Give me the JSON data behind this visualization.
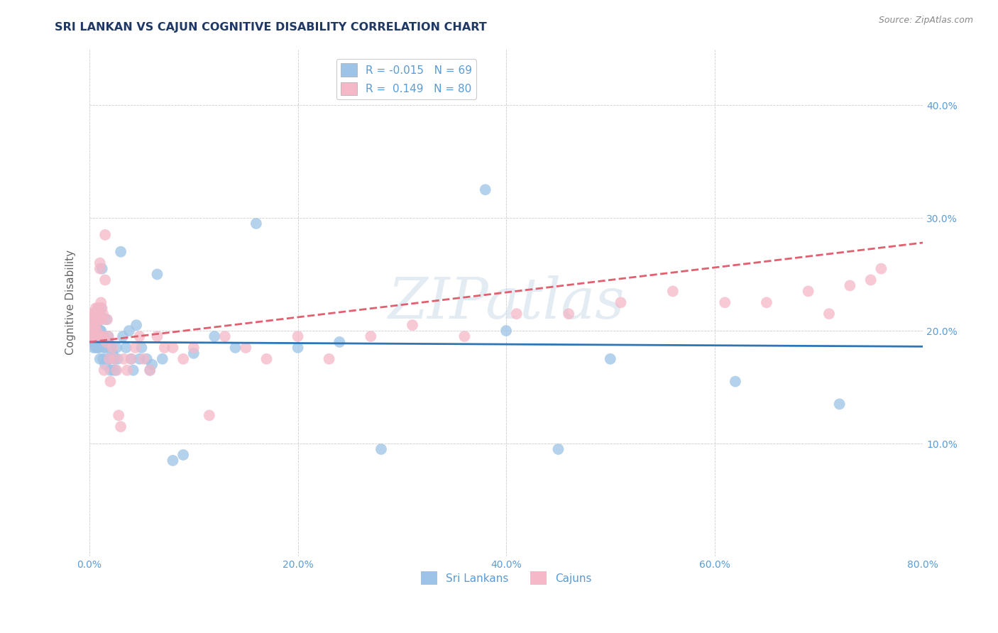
{
  "title": "SRI LANKAN VS CAJUN COGNITIVE DISABILITY CORRELATION CHART",
  "source": "Source: ZipAtlas.com",
  "ylabel": "Cognitive Disability",
  "watermark": "ZIPatlas",
  "xlim": [
    0.0,
    0.8
  ],
  "ylim": [
    0.0,
    0.45
  ],
  "xticks": [
    0.0,
    0.2,
    0.4,
    0.6,
    0.8
  ],
  "xtick_labels": [
    "0.0%",
    "20.0%",
    "40.0%",
    "60.0%",
    "80.0%"
  ],
  "yticks": [
    0.1,
    0.2,
    0.3,
    0.4
  ],
  "ytick_labels": [
    "10.0%",
    "20.0%",
    "30.0%",
    "40.0%"
  ],
  "sri_lankan_R": -0.015,
  "sri_lankan_N": 69,
  "cajun_R": 0.149,
  "cajun_N": 80,
  "title_color": "#1f3864",
  "axis_color": "#5b9bd5",
  "sri_lankan_color": "#9dc3e6",
  "cajun_color": "#f4b8c8",
  "sri_lankan_line_color": "#2e75b6",
  "cajun_line_color": "#e06070",
  "background_color": "#ffffff",
  "sri_lankans_x": [
    0.002,
    0.003,
    0.004,
    0.005,
    0.005,
    0.006,
    0.006,
    0.007,
    0.007,
    0.008,
    0.008,
    0.009,
    0.009,
    0.01,
    0.01,
    0.01,
    0.011,
    0.011,
    0.012,
    0.012,
    0.013,
    0.013,
    0.014,
    0.015,
    0.015,
    0.016,
    0.016,
    0.017,
    0.018,
    0.018,
    0.019,
    0.02,
    0.02,
    0.021,
    0.022,
    0.023,
    0.024,
    0.025,
    0.026,
    0.027,
    0.03,
    0.032,
    0.035,
    0.038,
    0.04,
    0.042,
    0.045,
    0.048,
    0.05,
    0.055,
    0.058,
    0.06,
    0.065,
    0.07,
    0.08,
    0.09,
    0.1,
    0.12,
    0.14,
    0.16,
    0.2,
    0.24,
    0.28,
    0.38,
    0.4,
    0.45,
    0.5,
    0.62,
    0.72
  ],
  "sri_lankans_y": [
    0.195,
    0.19,
    0.185,
    0.21,
    0.19,
    0.2,
    0.185,
    0.205,
    0.195,
    0.22,
    0.185,
    0.21,
    0.185,
    0.2,
    0.215,
    0.175,
    0.2,
    0.22,
    0.255,
    0.19,
    0.195,
    0.175,
    0.185,
    0.17,
    0.185,
    0.19,
    0.21,
    0.175,
    0.19,
    0.195,
    0.175,
    0.165,
    0.175,
    0.185,
    0.18,
    0.165,
    0.175,
    0.165,
    0.185,
    0.175,
    0.27,
    0.195,
    0.185,
    0.2,
    0.175,
    0.165,
    0.205,
    0.175,
    0.185,
    0.175,
    0.165,
    0.17,
    0.25,
    0.175,
    0.085,
    0.09,
    0.18,
    0.195,
    0.185,
    0.295,
    0.185,
    0.19,
    0.095,
    0.325,
    0.2,
    0.095,
    0.175,
    0.155,
    0.135
  ],
  "cajuns_x": [
    0.001,
    0.002,
    0.002,
    0.003,
    0.003,
    0.003,
    0.004,
    0.004,
    0.004,
    0.005,
    0.005,
    0.005,
    0.006,
    0.006,
    0.006,
    0.006,
    0.007,
    0.007,
    0.007,
    0.008,
    0.008,
    0.008,
    0.008,
    0.009,
    0.009,
    0.009,
    0.01,
    0.01,
    0.01,
    0.011,
    0.011,
    0.012,
    0.012,
    0.013,
    0.013,
    0.014,
    0.015,
    0.015,
    0.016,
    0.017,
    0.018,
    0.019,
    0.02,
    0.022,
    0.024,
    0.026,
    0.028,
    0.03,
    0.033,
    0.036,
    0.04,
    0.044,
    0.048,
    0.052,
    0.058,
    0.065,
    0.072,
    0.08,
    0.09,
    0.1,
    0.115,
    0.13,
    0.15,
    0.17,
    0.2,
    0.23,
    0.27,
    0.31,
    0.36,
    0.41,
    0.46,
    0.51,
    0.56,
    0.61,
    0.65,
    0.69,
    0.71,
    0.73,
    0.75,
    0.76
  ],
  "cajuns_y": [
    0.205,
    0.195,
    0.215,
    0.195,
    0.205,
    0.215,
    0.195,
    0.21,
    0.195,
    0.2,
    0.21,
    0.195,
    0.215,
    0.205,
    0.195,
    0.22,
    0.2,
    0.21,
    0.195,
    0.21,
    0.22,
    0.195,
    0.215,
    0.21,
    0.195,
    0.215,
    0.195,
    0.255,
    0.26,
    0.195,
    0.225,
    0.22,
    0.21,
    0.195,
    0.215,
    0.165,
    0.285,
    0.245,
    0.19,
    0.21,
    0.195,
    0.175,
    0.155,
    0.185,
    0.175,
    0.165,
    0.125,
    0.115,
    0.175,
    0.165,
    0.175,
    0.185,
    0.195,
    0.175,
    0.165,
    0.195,
    0.185,
    0.185,
    0.175,
    0.185,
    0.125,
    0.195,
    0.185,
    0.175,
    0.195,
    0.175,
    0.195,
    0.205,
    0.195,
    0.215,
    0.215,
    0.225,
    0.235,
    0.225,
    0.225,
    0.235,
    0.215,
    0.24,
    0.245,
    0.255
  ]
}
